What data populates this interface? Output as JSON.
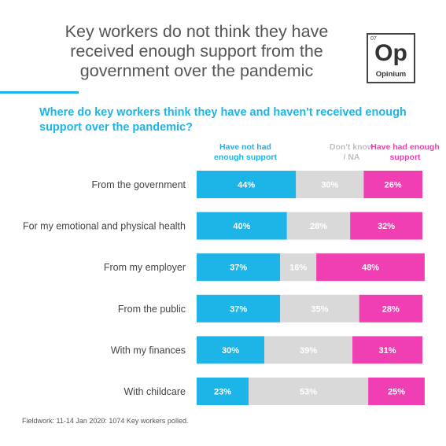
{
  "title": "Key workers do not think they have received enough support from the government over the pandemic",
  "logo": {
    "number": "07",
    "symbol": "Op",
    "name": "Opinium"
  },
  "colors": {
    "accent": "#1DB4E8",
    "not_had": "#1DB4E8",
    "dont_know": "#D9D9D9",
    "had": "#F03FB3"
  },
  "footnote": "Fieldwork: 11-14 Jan 2020: 1074 Key workers polled.",
  "chart_data": {
    "type": "bar",
    "orientation": "horizontal",
    "stacked": true,
    "title": "Where do key workers think they have and haven't received enough support over the pandemic?",
    "categories": [
      "From the government",
      "For my emotional and physical health",
      "From my employer",
      "From the public",
      "With my finances",
      "With childcare"
    ],
    "series": [
      {
        "name": "Have not had enough support",
        "color": "#1DB4E8",
        "values": [
          44,
          40,
          37,
          37,
          30,
          23
        ]
      },
      {
        "name": "Don't know / NA",
        "color": "#D9D9D9",
        "values": [
          30,
          28,
          16,
          35,
          39,
          53
        ]
      },
      {
        "name": "Have had enough support",
        "color": "#F03FB3",
        "values": [
          26,
          32,
          48,
          28,
          31,
          25
        ]
      }
    ],
    "value_suffix": "%",
    "xlim": [
      0,
      100
    ],
    "grid": false,
    "legend": "top"
  }
}
